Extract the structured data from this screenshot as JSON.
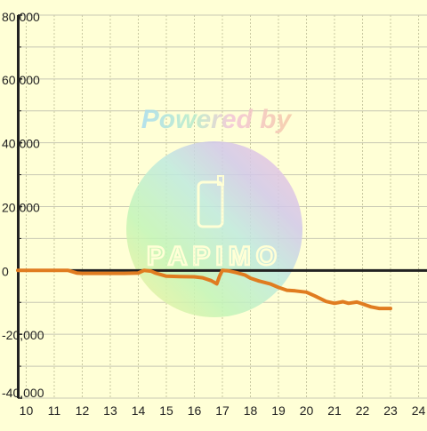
{
  "watermark": {
    "text": "Powered by",
    "brand": "PAPIMO"
  },
  "colors": {
    "background": "#ffffd6",
    "line": "#e07c20",
    "axis": "#222222",
    "grid_major": "#c8c8b4",
    "grid_minor": "#c8c8a0"
  },
  "chart_data": {
    "type": "line",
    "title": "",
    "xlabel": "",
    "ylabel": "",
    "xlim": [
      9.7,
      24.3
    ],
    "ylim": [
      -40000,
      80000
    ],
    "x_ticks": [
      "10",
      "11",
      "12",
      "13",
      "14",
      "15",
      "16",
      "17",
      "18",
      "19",
      "20",
      "21",
      "22",
      "23",
      "24"
    ],
    "y_ticks": [
      "80,000",
      "60,000",
      "40,000",
      "20,000",
      "0",
      "-20,000",
      "-40,000"
    ],
    "y_tick_values": [
      80000,
      60000,
      40000,
      20000,
      0,
      -20000,
      -40000
    ],
    "grid": true,
    "series": [
      {
        "values": [
          [
            9.7,
            0
          ],
          [
            10,
            0
          ],
          [
            10.5,
            0
          ],
          [
            11,
            0
          ],
          [
            11.5,
            0
          ],
          [
            11.8,
            -800
          ],
          [
            12,
            -900
          ],
          [
            12.5,
            -900
          ],
          [
            13,
            -900
          ],
          [
            13.5,
            -900
          ],
          [
            14,
            -800
          ],
          [
            14.2,
            0
          ],
          [
            14.45,
            -200
          ],
          [
            14.6,
            -800
          ],
          [
            15,
            -1800
          ],
          [
            15.5,
            -1900
          ],
          [
            16,
            -2000
          ],
          [
            16.3,
            -2300
          ],
          [
            16.6,
            -3200
          ],
          [
            16.8,
            -4200
          ],
          [
            16.9,
            -1800
          ],
          [
            17,
            0
          ],
          [
            17.2,
            -100
          ],
          [
            17.5,
            -700
          ],
          [
            17.8,
            -1400
          ],
          [
            18,
            -2400
          ],
          [
            18.3,
            -3300
          ],
          [
            18.7,
            -4200
          ],
          [
            19,
            -5300
          ],
          [
            19.3,
            -6200
          ],
          [
            19.6,
            -6400
          ],
          [
            20,
            -6800
          ],
          [
            20.3,
            -8000
          ],
          [
            20.7,
            -9700
          ],
          [
            21,
            -10300
          ],
          [
            21.3,
            -9800
          ],
          [
            21.5,
            -10300
          ],
          [
            21.8,
            -9900
          ],
          [
            22,
            -10500
          ],
          [
            22.3,
            -11400
          ],
          [
            22.6,
            -11900
          ],
          [
            23,
            -11900
          ]
        ]
      }
    ]
  }
}
